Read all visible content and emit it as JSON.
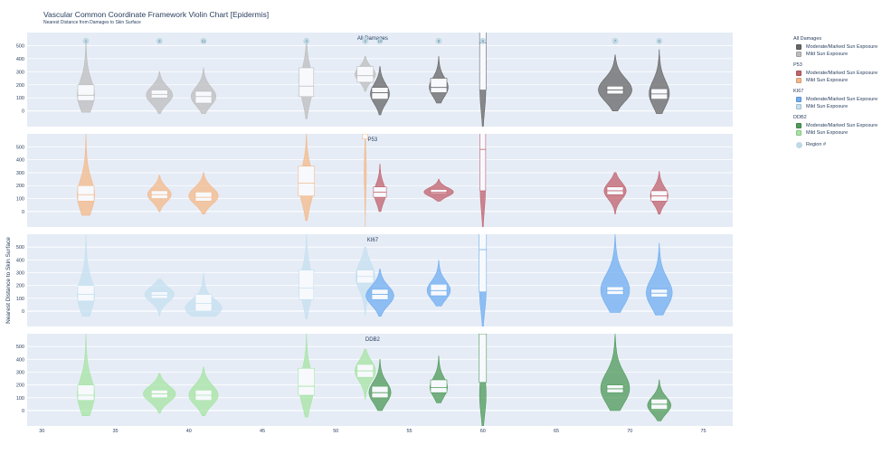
{
  "title": "Vascular Common Coordinate Framework Violin Chart [Epidermis]",
  "subtitle": "Nearest Distance from Damages to Skin Surface",
  "colors": {
    "plot_bg": "#e5ecf6",
    "region_marker": "#bfd9e6",
    "all_damages": {
      "moderate": "#666666",
      "mild": "#bdbdbd"
    },
    "P53": {
      "moderate": "#c0616c",
      "mild": "#f3b98a"
    },
    "KI67": {
      "moderate": "#6faef0",
      "mild": "#c5e0f0"
    },
    "DDB2": {
      "moderate": "#4e9a58",
      "mild": "#a6e4a3"
    }
  },
  "legend": {
    "groups": [
      {
        "title": "All Damages",
        "items": [
          "Moderate/Marked Sun Exposure",
          "Mild Sun Exposure"
        ],
        "key": "all_damages"
      },
      {
        "title": "P53",
        "items": [
          "Moderate/Marked Sun Exposure",
          "Mild Sun Exposure"
        ],
        "key": "P53"
      },
      {
        "title": "KI67",
        "items": [
          "Moderate/Marked Sun Exposure",
          "Mild Sun Exposure"
        ],
        "key": "KI67"
      },
      {
        "title": "DDB2",
        "items": [
          "Moderate/Marked Sun Exposure",
          "Mild Sun Exposure"
        ],
        "key": "DDB2"
      }
    ],
    "region_label": "Region #"
  },
  "chart_data": {
    "type": "violin",
    "ylabel": "Nearest Distance to Skin Surface",
    "xlim": [
      29,
      77
    ],
    "ylim": [
      -120,
      600
    ],
    "xticks": [
      30,
      35,
      40,
      45,
      50,
      55,
      60,
      65,
      70,
      75
    ],
    "yticks": [
      0,
      100,
      200,
      300,
      400,
      500
    ],
    "regions": [
      {
        "x": 33,
        "label": "1"
      },
      {
        "x": 38,
        "label": "3"
      },
      {
        "x": 41,
        "label": "11"
      },
      {
        "x": 48,
        "label": "4"
      },
      {
        "x": 52,
        "label": "2"
      },
      {
        "x": 53,
        "label": "10"
      },
      {
        "x": 57,
        "label": "8"
      },
      {
        "x": 60,
        "label": "9"
      },
      {
        "x": 69,
        "label": "7"
      },
      {
        "x": 72,
        "label": "6"
      }
    ],
    "panels": [
      {
        "name": "All Damages",
        "key": "all_damages",
        "violins": [
          {
            "x": 33,
            "exposure": "mild",
            "width": 1.2,
            "ymin": -10,
            "ymax": 560,
            "peak": 120,
            "q1": 80,
            "median": 120,
            "q3": 200
          },
          {
            "x": 38,
            "exposure": "mild",
            "width": 1.8,
            "ymin": -20,
            "ymax": 300,
            "peak": 120,
            "q1": 100,
            "median": 125,
            "q3": 160
          },
          {
            "x": 41,
            "exposure": "mild",
            "width": 1.7,
            "ymin": -20,
            "ymax": 330,
            "peak": 110,
            "q1": 60,
            "median": 110,
            "q3": 150
          },
          {
            "x": 48,
            "exposure": "mild",
            "width": 0.9,
            "ymin": -60,
            "ymax": 560,
            "peak": 200,
            "q1": 110,
            "median": 190,
            "q3": 330
          },
          {
            "x": 52,
            "exposure": "mild",
            "width": 1.4,
            "ymin": 150,
            "ymax": 420,
            "peak": 280,
            "q1": 220,
            "median": 270,
            "q3": 340
          },
          {
            "x": 53,
            "exposure": "moderate",
            "width": 1.3,
            "ymin": -30,
            "ymax": 340,
            "peak": 130,
            "q1": 90,
            "median": 140,
            "q3": 180
          },
          {
            "x": 57,
            "exposure": "moderate",
            "width": 1.3,
            "ymin": 60,
            "ymax": 420,
            "peak": 180,
            "q1": 140,
            "median": 180,
            "q3": 250
          },
          {
            "x": 60,
            "exposure": "moderate",
            "width": 0.4,
            "ymin": -120,
            "ymax": 620,
            "peak": 150,
            "q1": 160,
            "median": 520,
            "q3": 640
          },
          {
            "x": 69,
            "exposure": "moderate",
            "width": 2.3,
            "ymin": 0,
            "ymax": 430,
            "peak": 160,
            "q1": 130,
            "median": 160,
            "q3": 190
          },
          {
            "x": 72,
            "exposure": "moderate",
            "width": 1.4,
            "ymin": -20,
            "ymax": 470,
            "peak": 130,
            "q1": 90,
            "median": 130,
            "q3": 170
          }
        ]
      },
      {
        "name": "P53",
        "key": "P53",
        "violins": [
          {
            "x": 33,
            "exposure": "mild",
            "width": 1.2,
            "ymin": -30,
            "ymax": 600,
            "peak": 120,
            "q1": 80,
            "median": 130,
            "q3": 200
          },
          {
            "x": 38,
            "exposure": "mild",
            "width": 1.6,
            "ymin": 0,
            "ymax": 280,
            "peak": 130,
            "q1": 100,
            "median": 130,
            "q3": 160
          },
          {
            "x": 41,
            "exposure": "mild",
            "width": 2.0,
            "ymin": -20,
            "ymax": 300,
            "peak": 120,
            "q1": 80,
            "median": 110,
            "q3": 150
          },
          {
            "x": 48,
            "exposure": "mild",
            "width": 1.0,
            "ymin": -70,
            "ymax": 600,
            "peak": 200,
            "q1": 120,
            "median": 220,
            "q3": 350
          },
          {
            "x": 52,
            "exposure": "mild",
            "width": 0.15,
            "ymin": -120,
            "ymax": 620,
            "peak": 300,
            "q1": 560,
            "median": 600,
            "q3": 620
          },
          {
            "x": 53,
            "exposure": "moderate",
            "width": 0.8,
            "ymin": 0,
            "ymax": 370,
            "peak": 140,
            "q1": 110,
            "median": 150,
            "q3": 190
          },
          {
            "x": 57,
            "exposure": "moderate",
            "width": 2.0,
            "ymin": 80,
            "ymax": 250,
            "peak": 150,
            "q1": 140,
            "median": 150,
            "q3": 170
          },
          {
            "x": 60,
            "exposure": "moderate",
            "width": 0.35,
            "ymin": -120,
            "ymax": 620,
            "peak": 160,
            "q1": 160,
            "median": 480,
            "q3": 640
          },
          {
            "x": 69,
            "exposure": "moderate",
            "width": 1.5,
            "ymin": -20,
            "ymax": 300,
            "peak": 160,
            "q1": 130,
            "median": 160,
            "q3": 190
          },
          {
            "x": 72,
            "exposure": "moderate",
            "width": 1.2,
            "ymin": -20,
            "ymax": 310,
            "peak": 120,
            "q1": 80,
            "median": 120,
            "q3": 160
          }
        ]
      },
      {
        "name": "KI67",
        "key": "KI67",
        "violins": [
          {
            "x": 33,
            "exposure": "mild",
            "width": 1.2,
            "ymin": -40,
            "ymax": 600,
            "peak": 120,
            "q1": 80,
            "median": 130,
            "q3": 200
          },
          {
            "x": 38,
            "exposure": "mild",
            "width": 2.0,
            "ymin": -40,
            "ymax": 250,
            "peak": 130,
            "q1": 100,
            "median": 125,
            "q3": 150
          },
          {
            "x": 41,
            "exposure": "mild",
            "width": 2.6,
            "ymin": -40,
            "ymax": 300,
            "peak": 20,
            "q1": 0,
            "median": 60,
            "q3": 130
          },
          {
            "x": 48,
            "exposure": "mild",
            "width": 0.9,
            "ymin": -60,
            "ymax": 600,
            "peak": 200,
            "q1": 90,
            "median": 180,
            "q3": 320
          },
          {
            "x": 52,
            "exposure": "mild",
            "width": 1.3,
            "ymin": -30,
            "ymax": 500,
            "peak": 270,
            "q1": 220,
            "median": 270,
            "q3": 320
          },
          {
            "x": 53,
            "exposure": "moderate",
            "width": 1.9,
            "ymin": -40,
            "ymax": 330,
            "peak": 120,
            "q1": 90,
            "median": 130,
            "q3": 170
          },
          {
            "x": 57,
            "exposure": "moderate",
            "width": 1.6,
            "ymin": 40,
            "ymax": 400,
            "peak": 160,
            "q1": 120,
            "median": 160,
            "q3": 210
          },
          {
            "x": 60,
            "exposure": "moderate",
            "width": 0.45,
            "ymin": -120,
            "ymax": 620,
            "peak": 150,
            "q1": 150,
            "median": 480,
            "q3": 640
          },
          {
            "x": 69,
            "exposure": "moderate",
            "width": 2.0,
            "ymin": -10,
            "ymax": 600,
            "peak": 160,
            "q1": 130,
            "median": 160,
            "q3": 190
          },
          {
            "x": 72,
            "exposure": "moderate",
            "width": 1.8,
            "ymin": -30,
            "ymax": 530,
            "peak": 140,
            "q1": 110,
            "median": 140,
            "q3": 170
          }
        ]
      },
      {
        "name": "DDB2",
        "key": "DDB2",
        "violins": [
          {
            "x": 33,
            "exposure": "mild",
            "width": 1.2,
            "ymin": -40,
            "ymax": 600,
            "peak": 120,
            "q1": 80,
            "median": 120,
            "q3": 200
          },
          {
            "x": 38,
            "exposure": "mild",
            "width": 2.2,
            "ymin": -20,
            "ymax": 290,
            "peak": 130,
            "q1": 100,
            "median": 130,
            "q3": 160
          },
          {
            "x": 41,
            "exposure": "mild",
            "width": 2.0,
            "ymin": -40,
            "ymax": 340,
            "peak": 120,
            "q1": 80,
            "median": 120,
            "q3": 160
          },
          {
            "x": 48,
            "exposure": "mild",
            "width": 1.0,
            "ymin": -50,
            "ymax": 600,
            "peak": 180,
            "q1": 120,
            "median": 190,
            "q3": 330
          },
          {
            "x": 52,
            "exposure": "mild",
            "width": 1.4,
            "ymin": 90,
            "ymax": 480,
            "peak": 310,
            "q1": 260,
            "median": 310,
            "q3": 360
          },
          {
            "x": 53,
            "exposure": "moderate",
            "width": 1.5,
            "ymin": 0,
            "ymax": 400,
            "peak": 140,
            "q1": 100,
            "median": 140,
            "q3": 190
          },
          {
            "x": 57,
            "exposure": "moderate",
            "width": 1.2,
            "ymin": 60,
            "ymax": 430,
            "peak": 180,
            "q1": 140,
            "median": 180,
            "q3": 240
          },
          {
            "x": 60,
            "exposure": "moderate",
            "width": 0.45,
            "ymin": -120,
            "ymax": 620,
            "peak": 120,
            "q1": 220,
            "median": 600,
            "q3": 640
          },
          {
            "x": 69,
            "exposure": "moderate",
            "width": 2.0,
            "ymin": 0,
            "ymax": 600,
            "peak": 170,
            "q1": 140,
            "median": 170,
            "q3": 200
          },
          {
            "x": 72,
            "exposure": "moderate",
            "width": 1.6,
            "ymin": -80,
            "ymax": 240,
            "peak": 40,
            "q1": 10,
            "median": 50,
            "q3": 90
          }
        ]
      }
    ]
  }
}
